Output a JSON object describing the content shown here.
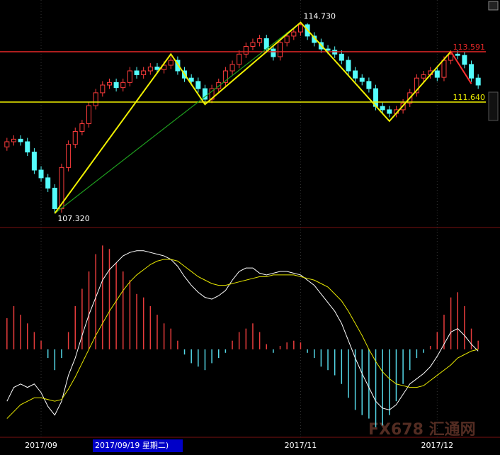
{
  "chart_data": {
    "type": "candlestick",
    "categories": [
      null,
      null,
      null,
      null,
      null,
      "2017/09",
      null,
      null,
      null,
      null,
      null,
      null,
      null,
      null,
      null,
      null,
      null,
      null,
      null,
      null,
      null,
      null,
      null,
      null,
      null,
      null,
      null,
      null,
      null,
      null,
      null,
      null,
      null,
      null,
      null,
      null,
      null,
      null,
      null,
      null,
      null,
      null,
      null,
      "2017/11",
      null,
      null,
      null,
      null,
      null,
      null,
      null,
      null,
      null,
      null,
      null,
      null,
      null,
      null,
      null,
      null,
      null,
      null,
      null,
      "2017/12",
      null,
      null,
      null,
      null,
      null,
      null
    ],
    "open": [
      109.9,
      110.1,
      110.2,
      110.1,
      109.7,
      109.0,
      108.7,
      108.3,
      107.5,
      109.1,
      110.0,
      110.5,
      110.8,
      111.5,
      112.0,
      112.3,
      112.4,
      112.2,
      112.4,
      112.85,
      112.7,
      112.85,
      113.0,
      112.9,
      113.07,
      113.26,
      112.85,
      112.57,
      112.44,
      112.16,
      111.75,
      112.16,
      112.4,
      112.85,
      113.1,
      113.5,
      113.8,
      113.95,
      114.1,
      113.7,
      113.4,
      113.95,
      114.2,
      114.36,
      114.64,
      114.2,
      113.95,
      113.7,
      113.65,
      113.5,
      113.26,
      112.85,
      112.57,
      112.44,
      112.16,
      111.47,
      111.34,
      111.2,
      111.34,
      111.6,
      112.0,
      112.57,
      112.7,
      112.85,
      112.6,
      113.26,
      113.5,
      113.45,
      113.1,
      112.57
    ],
    "high": [
      110.25,
      110.35,
      110.35,
      110.25,
      109.85,
      109.15,
      108.85,
      108.45,
      109.25,
      110.15,
      110.65,
      110.95,
      111.65,
      112.15,
      112.45,
      112.55,
      112.55,
      112.55,
      113.0,
      113.0,
      113.0,
      113.15,
      113.15,
      113.22,
      113.41,
      113.41,
      113.0,
      112.72,
      112.59,
      112.31,
      112.31,
      112.55,
      113.0,
      113.25,
      113.65,
      113.95,
      114.1,
      114.25,
      114.25,
      113.85,
      114.1,
      114.35,
      114.51,
      114.73,
      114.7,
      114.35,
      114.1,
      113.85,
      113.8,
      113.65,
      113.41,
      113.0,
      112.72,
      112.59,
      112.31,
      111.62,
      111.49,
      111.49,
      111.75,
      112.15,
      112.72,
      112.85,
      113.0,
      113.0,
      113.41,
      113.65,
      113.65,
      113.6,
      113.25,
      112.72
    ],
    "low": [
      109.75,
      109.95,
      109.95,
      109.55,
      108.85,
      108.55,
      108.15,
      107.32,
      107.35,
      108.95,
      109.85,
      110.35,
      110.65,
      111.35,
      111.85,
      112.15,
      112.05,
      112.05,
      112.25,
      112.55,
      112.55,
      112.7,
      112.75,
      112.75,
      112.92,
      112.7,
      112.42,
      112.29,
      112.01,
      111.6,
      111.6,
      112.01,
      112.25,
      112.7,
      112.95,
      113.35,
      113.65,
      113.8,
      113.55,
      113.25,
      113.25,
      113.8,
      114.05,
      114.21,
      114.05,
      113.8,
      113.55,
      113.5,
      113.35,
      113.11,
      112.7,
      112.42,
      112.29,
      112.01,
      111.32,
      111.19,
      111.05,
      111.05,
      111.19,
      111.45,
      111.85,
      112.42,
      112.55,
      112.45,
      112.45,
      113.11,
      113.3,
      112.95,
      112.42,
      112.15
    ],
    "close": [
      110.1,
      110.2,
      110.1,
      109.7,
      109.0,
      108.7,
      108.3,
      107.5,
      109.1,
      110.0,
      110.5,
      110.8,
      111.5,
      112.0,
      112.3,
      112.4,
      112.2,
      112.4,
      112.85,
      112.7,
      112.85,
      113.0,
      112.9,
      113.07,
      113.26,
      112.85,
      112.57,
      112.44,
      112.16,
      111.75,
      112.16,
      112.4,
      112.85,
      113.1,
      113.5,
      113.8,
      113.95,
      114.1,
      113.7,
      113.4,
      113.95,
      114.2,
      114.36,
      114.64,
      114.2,
      113.95,
      113.7,
      113.65,
      113.5,
      113.26,
      112.85,
      112.57,
      112.44,
      112.16,
      111.47,
      111.34,
      111.2,
      111.34,
      111.6,
      112.0,
      112.57,
      112.7,
      112.85,
      112.6,
      113.26,
      113.5,
      113.45,
      113.1,
      112.57,
      112.3
    ],
    "up_color": "#ff3c3c",
    "down_color": "#54fcfc",
    "ylim": [
      106.8,
      115.6
    ],
    "levels": [
      {
        "value": 113.591,
        "color": "#e82828"
      },
      {
        "value": 111.64,
        "label": "111.640",
        "color": "#f0f000"
      }
    ],
    "trend": {
      "x": [
        7,
        43
      ],
      "values": [
        107.32,
        114.73
      ],
      "color": "#1e9e1e"
    },
    "zigzag": {
      "x": [
        7,
        24,
        29,
        43,
        56,
        65
      ],
      "values": [
        107.32,
        113.5,
        111.55,
        114.73,
        110.9,
        113.6
      ],
      "value_labels": [
        "107.320",
        null,
        null,
        "114.730",
        null,
        null
      ],
      "color": "#f0f000"
    },
    "zigzag_tail": {
      "x": [
        65,
        68
      ],
      "values": [
        113.6,
        112.35
      ],
      "color": "#ff3030"
    },
    "macd": {
      "ylim": [
        -0.5,
        0.7
      ],
      "histogram": [
        0.18,
        0.25,
        0.2,
        0.15,
        0.1,
        0.05,
        -0.05,
        -0.12,
        -0.05,
        0.1,
        0.25,
        0.35,
        0.45,
        0.55,
        0.6,
        0.58,
        0.5,
        0.45,
        0.4,
        0.32,
        0.3,
        0.25,
        0.2,
        0.15,
        0.12,
        0.05,
        -0.03,
        -0.08,
        -0.1,
        -0.12,
        -0.08,
        -0.05,
        -0.02,
        0.05,
        0.1,
        0.12,
        0.15,
        0.1,
        0.03,
        -0.02,
        0.02,
        0.04,
        0.05,
        0.04,
        -0.02,
        -0.05,
        -0.1,
        -0.12,
        -0.15,
        -0.2,
        -0.28,
        -0.35,
        -0.38,
        -0.4,
        -0.45,
        -0.44,
        -0.38,
        -0.3,
        -0.2,
        -0.12,
        -0.05,
        -0.02,
        0.02,
        0.1,
        0.2,
        0.3,
        0.33,
        0.25,
        0.12,
        0.05
      ],
      "dif": {
        "color": "#ffffff",
        "values": [
          -0.3,
          -0.22,
          -0.2,
          -0.22,
          -0.2,
          -0.25,
          -0.33,
          -0.38,
          -0.3,
          -0.15,
          -0.05,
          0.08,
          0.2,
          0.3,
          0.4,
          0.46,
          0.5,
          0.54,
          0.56,
          0.57,
          0.57,
          0.56,
          0.55,
          0.54,
          0.52,
          0.48,
          0.42,
          0.37,
          0.33,
          0.3,
          0.29,
          0.31,
          0.34,
          0.4,
          0.45,
          0.47,
          0.47,
          0.44,
          0.43,
          0.44,
          0.45,
          0.45,
          0.44,
          0.43,
          0.4,
          0.37,
          0.32,
          0.27,
          0.22,
          0.15,
          0.05,
          -0.05,
          -0.14,
          -0.22,
          -0.3,
          -0.34,
          -0.35,
          -0.32,
          -0.26,
          -0.2,
          -0.17,
          -0.14,
          -0.1,
          -0.04,
          0.03,
          0.1,
          0.12,
          0.08,
          0.03,
          -0.01
        ]
      },
      "dea": {
        "color": "#e8e800",
        "values": [
          -0.4,
          -0.36,
          -0.32,
          -0.3,
          -0.28,
          -0.28,
          -0.29,
          -0.3,
          -0.29,
          -0.23,
          -0.16,
          -0.08,
          0.0,
          0.08,
          0.15,
          0.22,
          0.28,
          0.34,
          0.39,
          0.43,
          0.46,
          0.49,
          0.51,
          0.52,
          0.52,
          0.51,
          0.48,
          0.45,
          0.42,
          0.4,
          0.38,
          0.37,
          0.37,
          0.38,
          0.39,
          0.4,
          0.41,
          0.42,
          0.42,
          0.43,
          0.43,
          0.43,
          0.43,
          0.42,
          0.41,
          0.4,
          0.38,
          0.36,
          0.32,
          0.28,
          0.22,
          0.15,
          0.08,
          0.0,
          -0.07,
          -0.13,
          -0.17,
          -0.2,
          -0.21,
          -0.22,
          -0.22,
          -0.21,
          -0.18,
          -0.15,
          -0.12,
          -0.09,
          -0.05,
          -0.03,
          -0.01,
          0.0
        ]
      }
    }
  },
  "status": {
    "date": "2017/09/19 星期二)",
    "watermark": "FX678 汇通网"
  }
}
